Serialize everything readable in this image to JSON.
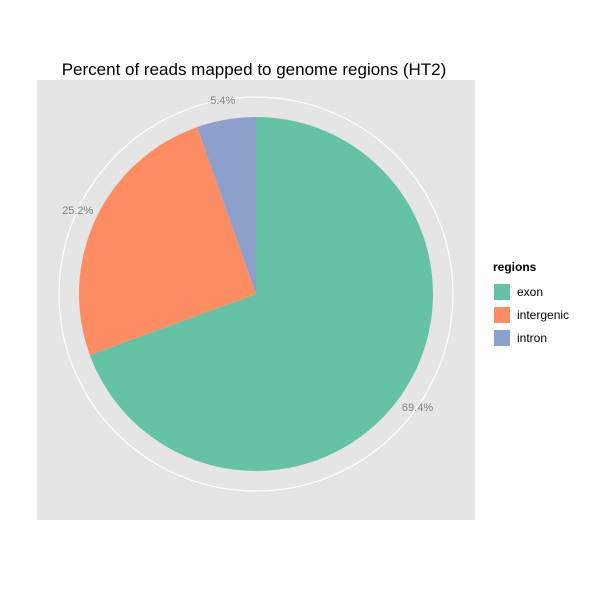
{
  "chart_data": {
    "type": "pie",
    "title": "Percent of reads mapped to genome regions (HT2)",
    "legend_title": "regions",
    "legend_position": "right",
    "slices": [
      {
        "name": "exon",
        "value": 69.4,
        "label": "69.4%",
        "color": "#66c2a5"
      },
      {
        "name": "intergenic",
        "value": 25.2,
        "label": "25.2%",
        "color": "#fc8d62"
      },
      {
        "name": "intron",
        "value": 5.4,
        "label": "5.4%",
        "color": "#8da0cb"
      }
    ]
  }
}
